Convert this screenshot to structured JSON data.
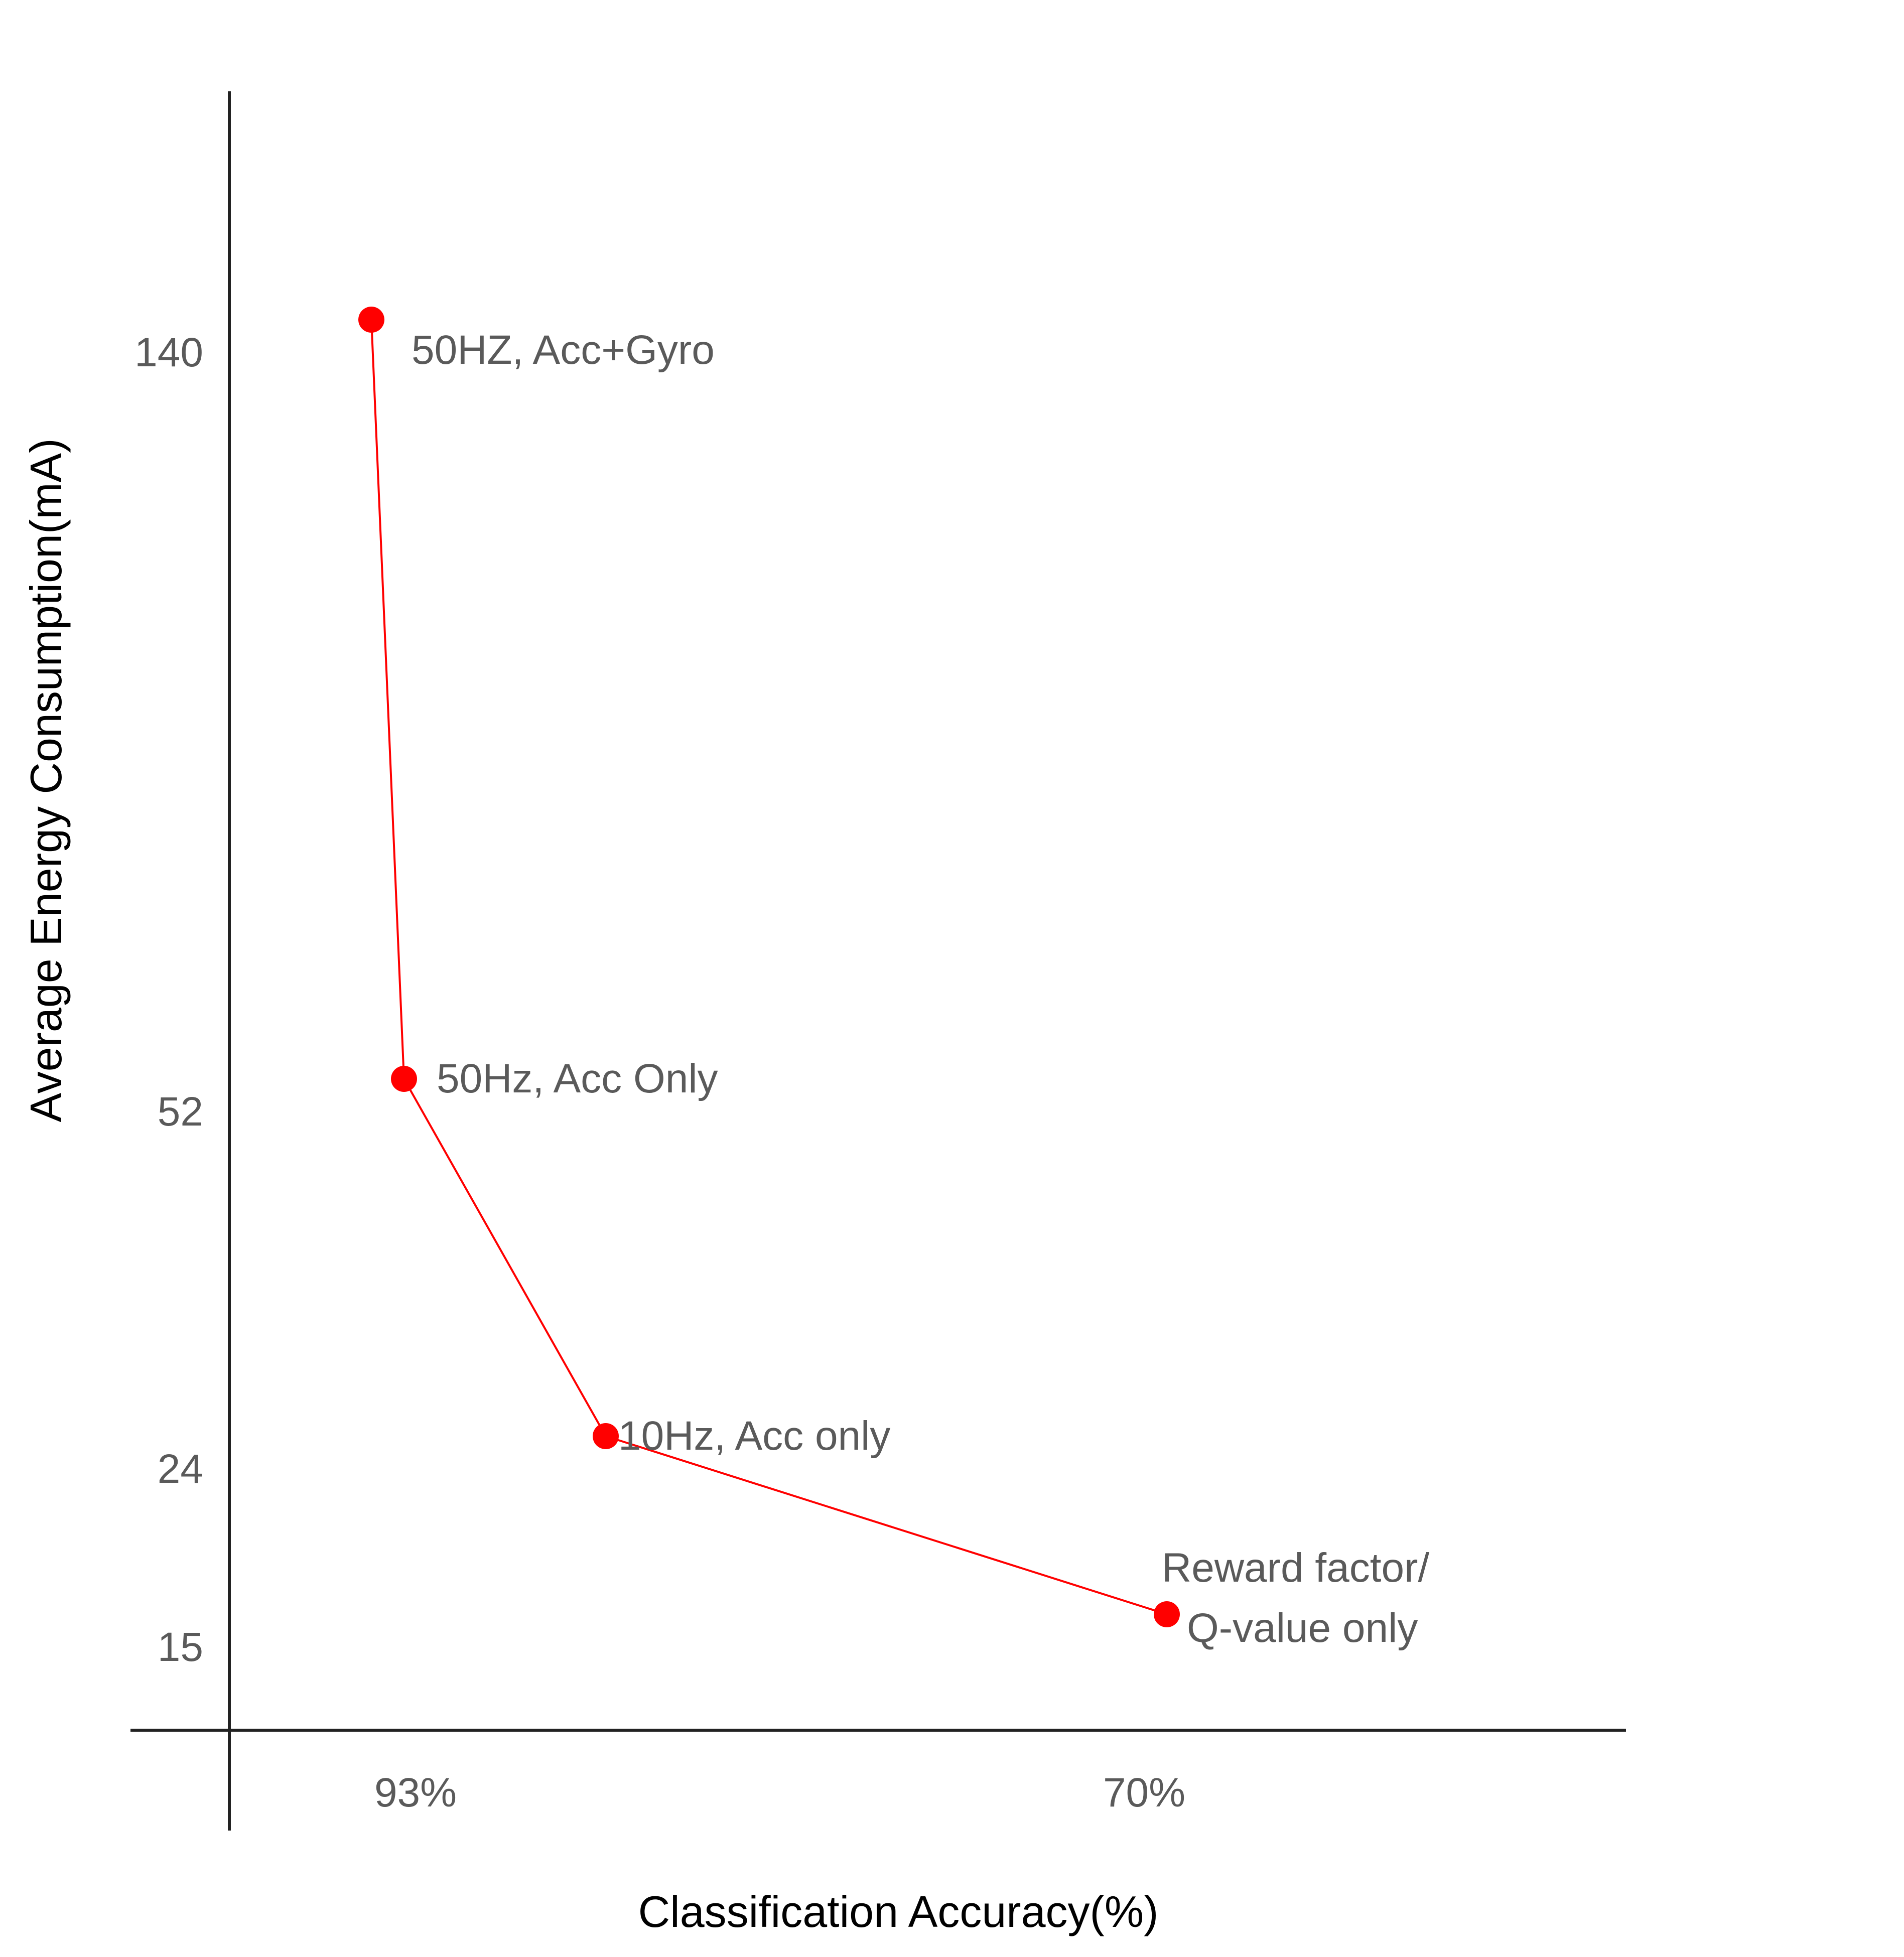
{
  "chart_data": {
    "type": "line",
    "title": "",
    "xlabel": "Classification Accuracy(%)",
    "ylabel": "Average Energy Consumption(mA)",
    "x_tick_labels": [
      "93%",
      "70%"
    ],
    "y_ticks": [
      140,
      52,
      24,
      15
    ],
    "y_tick_labels": [
      "140",
      "52",
      "24",
      "15"
    ],
    "grid": false,
    "series": [
      {
        "color": "#ff0000",
        "points": [
          {
            "accuracy_percent": 93,
            "energy_mA": 140,
            "label": [
              "50HZ, Acc+Gyro"
            ]
          },
          {
            "accuracy_percent": 92,
            "energy_mA": 52,
            "label": [
              "50Hz, Acc Only"
            ]
          },
          {
            "accuracy_percent": 86,
            "energy_mA": 24,
            "label": [
              "10Hz, Acc only"
            ]
          },
          {
            "accuracy_percent": 70,
            "energy_mA": 15,
            "label": [
              "Reward factor/",
              "Q-value only"
            ]
          }
        ]
      }
    ]
  }
}
